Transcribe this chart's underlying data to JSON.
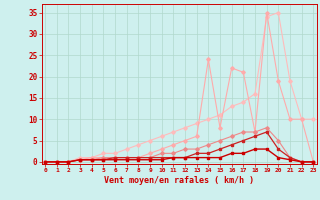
{
  "xlabel": "Vent moyen/en rafales ( km/h )",
  "bg_color": "#cef0ee",
  "grid_color": "#b0d8cc",
  "x_ticks": [
    0,
    1,
    2,
    3,
    4,
    5,
    6,
    7,
    8,
    9,
    10,
    11,
    12,
    13,
    14,
    15,
    16,
    17,
    18,
    19,
    20,
    21,
    22,
    23
  ],
  "y_ticks": [
    0,
    5,
    10,
    15,
    20,
    25,
    30,
    35
  ],
  "xlim": [
    -0.3,
    23.3
  ],
  "ylim": [
    -0.5,
    37
  ],
  "lines": [
    {
      "x": [
        0,
        1,
        2,
        3,
        4,
        5,
        6,
        7,
        8,
        9,
        10,
        11,
        12,
        13,
        14,
        15,
        16,
        17,
        18,
        19,
        20,
        21,
        22,
        23
      ],
      "y": [
        0,
        0,
        0,
        1,
        1,
        2,
        2,
        3,
        4,
        5,
        6,
        7,
        8,
        9,
        10,
        11,
        13,
        14,
        16,
        34,
        35,
        19,
        10,
        10
      ],
      "color": "#ffbbbb",
      "lw": 0.8,
      "marker": "D",
      "ms": 1.8
    },
    {
      "x": [
        0,
        1,
        2,
        3,
        4,
        5,
        6,
        7,
        8,
        9,
        10,
        11,
        12,
        13,
        14,
        15,
        16,
        17,
        18,
        19,
        20,
        21,
        22,
        23
      ],
      "y": [
        0,
        0,
        0,
        0.5,
        1,
        1,
        1,
        1,
        1,
        2,
        3,
        4,
        5,
        6,
        24,
        8,
        22,
        21,
        7,
        35,
        19,
        10,
        10,
        0
      ],
      "color": "#ffaaaa",
      "lw": 0.8,
      "marker": "D",
      "ms": 1.8
    },
    {
      "x": [
        0,
        1,
        2,
        3,
        4,
        5,
        6,
        7,
        8,
        9,
        10,
        11,
        12,
        13,
        14,
        15,
        16,
        17,
        18,
        19,
        20,
        21,
        22,
        23
      ],
      "y": [
        0,
        0,
        0,
        0.5,
        0.5,
        1,
        1,
        1,
        1,
        1,
        2,
        2,
        3,
        3,
        4,
        5,
        6,
        7,
        7,
        8,
        5,
        1,
        0,
        0
      ],
      "color": "#ee8888",
      "lw": 0.8,
      "marker": "D",
      "ms": 1.8
    },
    {
      "x": [
        0,
        1,
        2,
        3,
        4,
        5,
        6,
        7,
        8,
        9,
        10,
        11,
        12,
        13,
        14,
        15,
        16,
        17,
        18,
        19,
        20,
        21,
        22,
        23
      ],
      "y": [
        0,
        0,
        0,
        0.5,
        0.5,
        0.5,
        1,
        1,
        1,
        1,
        1,
        1,
        1,
        2,
        2,
        3,
        4,
        5,
        6,
        7,
        3,
        1,
        0,
        0
      ],
      "color": "#cc2222",
      "lw": 0.9,
      "marker": "s",
      "ms": 1.8
    },
    {
      "x": [
        0,
        1,
        2,
        3,
        4,
        5,
        6,
        7,
        8,
        9,
        10,
        11,
        12,
        13,
        14,
        15,
        16,
        17,
        18,
        19,
        20,
        21,
        22,
        23
      ],
      "y": [
        0,
        0,
        0,
        0.5,
        0.5,
        0.5,
        0.5,
        0.5,
        0.5,
        0.5,
        0.5,
        1,
        1,
        1,
        1,
        1,
        2,
        2,
        3,
        3,
        1,
        0.5,
        0,
        0
      ],
      "color": "#cc0000",
      "lw": 1.0,
      "marker": "s",
      "ms": 1.8
    }
  ]
}
